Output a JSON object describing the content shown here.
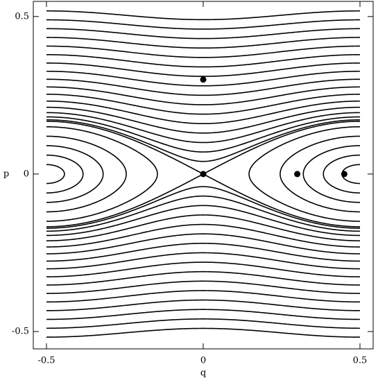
{
  "chart_data": {
    "type": "phase",
    "xlabel": "q",
    "ylabel": "p",
    "xlim": [
      -0.542,
      0.542
    ],
    "ylim": [
      -0.555,
      0.548
    ],
    "xticks": [
      -0.5,
      0,
      0.5
    ],
    "yticks": [
      -0.5,
      0,
      0.5
    ],
    "potential_amplitude": 0.007,
    "trajectories": {
      "color": "#000000",
      "levels": [
        -0.00655,
        -0.0052,
        -0.00295,
        0.0002,
        0.00425,
        0.007,
        0.0078,
        0.00945,
        0.012,
        0.01545,
        0.0198,
        0.02505,
        0.0312,
        0.03825,
        0.0462,
        0.05505,
        0.0648,
        0.07545,
        0.087,
        0.09945,
        0.1128,
        0.12705
      ]
    },
    "points": {
      "color": "#000000",
      "x": [
        0,
        0,
        0.3,
        0.45
      ],
      "y": [
        0.3,
        0,
        0,
        0
      ]
    }
  }
}
